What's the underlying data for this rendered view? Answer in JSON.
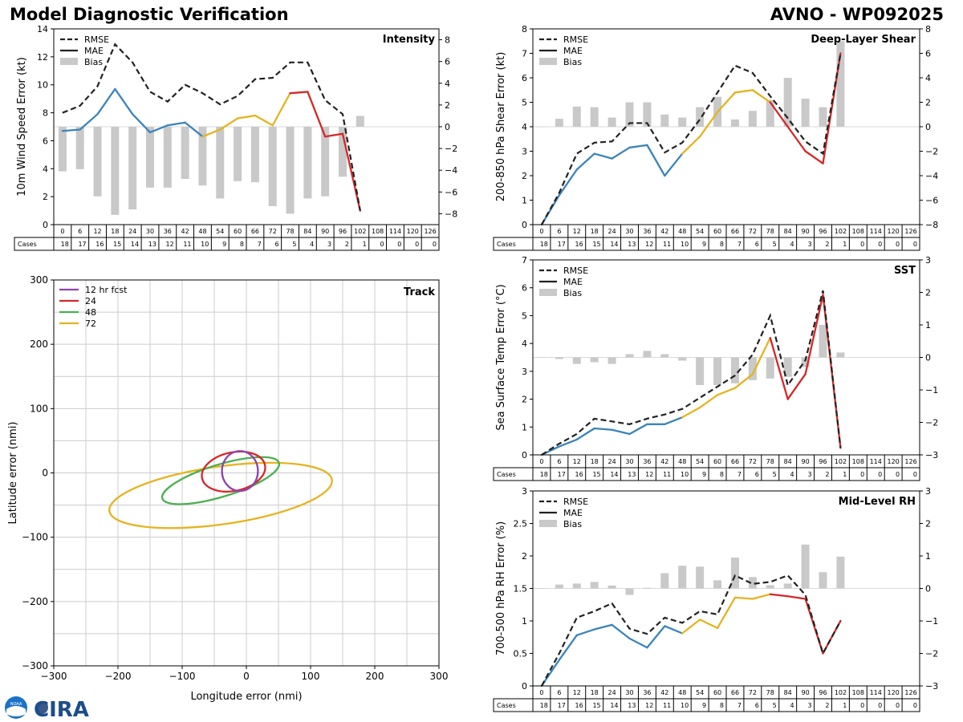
{
  "header": {
    "title": "Model Diagnostic Verification",
    "model_storm": "AVNO - WP092025"
  },
  "footer": {
    "logo_text": "CIRA",
    "noaa_text": "NOAA"
  },
  "colors": {
    "rmse": "#222222",
    "bias": "#c9c9c9",
    "early": "#3a84bc",
    "mid": "#e6b320",
    "late": "#d62728",
    "track_12": "#8e44ad",
    "track_24": "#d62728",
    "track_48": "#4caf50",
    "track_72": "#e6b320"
  },
  "legend": {
    "rmse": "RMSE",
    "mae": "MAE",
    "bias": "Bias"
  },
  "cases_label": "Cases",
  "lead_times": [
    0,
    6,
    12,
    18,
    24,
    30,
    36,
    42,
    48,
    54,
    60,
    66,
    72,
    78,
    84,
    90,
    96,
    102,
    108,
    114,
    120,
    126
  ],
  "cases": [
    18,
    17,
    16,
    15,
    14,
    13,
    12,
    11,
    10,
    9,
    8,
    7,
    6,
    5,
    4,
    3,
    2,
    1,
    0,
    0,
    0,
    0
  ],
  "chart_data": [
    {
      "id": "intensity",
      "type": "line",
      "title": "Intensity",
      "ylabel": "10m Wind Speed Error (kt)",
      "ylim": [
        0,
        14
      ],
      "yticks": [
        0,
        2,
        4,
        6,
        8,
        10,
        12,
        14
      ],
      "y2lim": [
        -9,
        9
      ],
      "y2ticks": [
        -8,
        -6,
        -4,
        -2,
        0,
        2,
        4,
        6,
        8
      ],
      "x": [
        0,
        6,
        12,
        18,
        24,
        30,
        36,
        42,
        48,
        54,
        60,
        66,
        72,
        78,
        84,
        90,
        96,
        102
      ],
      "series": [
        {
          "name": "RMSE",
          "values": [
            8.0,
            8.5,
            9.9,
            12.9,
            11.6,
            9.5,
            8.8,
            10.0,
            9.4,
            8.6,
            9.2,
            10.4,
            10.5,
            11.6,
            11.6,
            8.9,
            7.9,
            1.0
          ]
        },
        {
          "name": "MAE",
          "values": [
            6.7,
            6.8,
            7.9,
            9.7,
            7.9,
            6.6,
            7.1,
            7.3,
            6.3,
            6.8,
            7.6,
            7.8,
            7.1,
            9.4,
            9.5,
            6.3,
            6.5,
            1.0
          ]
        },
        {
          "name": "Bias",
          "values": [
            -4.1,
            -3.9,
            -6.4,
            -8.1,
            -7.6,
            -5.6,
            -5.6,
            -4.8,
            -5.4,
            -6.6,
            -5.0,
            -5.1,
            -7.3,
            -8.0,
            -6.6,
            -6.4,
            -4.6,
            1.0
          ]
        }
      ]
    },
    {
      "id": "shear",
      "type": "line",
      "title": "Deep-Layer Shear",
      "ylabel": "200-850 hPa Shear Error (kt)",
      "ylim": [
        0,
        8
      ],
      "yticks": [
        0,
        1,
        2,
        3,
        4,
        5,
        6,
        7,
        8
      ],
      "y2lim": [
        -8,
        8
      ],
      "y2ticks": [
        -8,
        -6,
        -4,
        -2,
        0,
        2,
        4,
        6,
        8
      ],
      "x": [
        0,
        6,
        12,
        18,
        24,
        30,
        36,
        42,
        48,
        54,
        60,
        66,
        72,
        78,
        84,
        90,
        96,
        102
      ],
      "series": [
        {
          "name": "RMSE",
          "values": [
            0.0,
            1.3,
            2.9,
            3.35,
            3.4,
            4.15,
            4.15,
            2.95,
            3.35,
            4.3,
            5.4,
            6.5,
            6.2,
            5.25,
            4.35,
            3.4,
            2.9,
            7.0
          ]
        },
        {
          "name": "MAE",
          "values": [
            0.0,
            1.2,
            2.25,
            2.9,
            2.7,
            3.15,
            3.25,
            2.0,
            2.9,
            3.6,
            4.6,
            5.4,
            5.5,
            5.0,
            4.0,
            3.0,
            2.5,
            7.0
          ]
        },
        {
          "name": "Bias",
          "values": [
            0.0,
            0.65,
            1.65,
            1.6,
            0.75,
            2.0,
            2.0,
            1.0,
            0.75,
            1.6,
            2.45,
            0.6,
            1.3,
            2.2,
            4.0,
            2.3,
            1.6,
            7.0
          ]
        }
      ]
    },
    {
      "id": "sst",
      "type": "line",
      "title": "SST",
      "ylabel": "Sea Surface Temp Error (°C)",
      "ylim": [
        0,
        7
      ],
      "yticks": [
        0,
        1,
        2,
        3,
        4,
        5,
        6,
        7
      ],
      "y2lim": [
        -3,
        3
      ],
      "y2ticks": [
        -3,
        -2,
        -1,
        0,
        1,
        2,
        3
      ],
      "x": [
        0,
        6,
        12,
        18,
        24,
        30,
        36,
        42,
        48,
        54,
        60,
        66,
        72,
        78,
        84,
        90,
        96,
        102
      ],
      "series": [
        {
          "name": "RMSE",
          "values": [
            0.0,
            0.4,
            0.75,
            1.3,
            1.2,
            1.1,
            1.3,
            1.45,
            1.65,
            2.05,
            2.45,
            2.85,
            3.6,
            5.0,
            2.5,
            3.4,
            5.9,
            0.25
          ]
        },
        {
          "name": "MAE",
          "values": [
            0.0,
            0.3,
            0.55,
            0.95,
            0.9,
            0.75,
            1.1,
            1.1,
            1.35,
            1.7,
            2.15,
            2.4,
            2.9,
            4.2,
            2.0,
            2.9,
            5.75,
            0.25
          ]
        },
        {
          "name": "Bias",
          "values": [
            0.0,
            -0.05,
            -0.2,
            -0.15,
            -0.2,
            0.1,
            0.2,
            0.1,
            -0.1,
            -0.85,
            -0.85,
            -0.8,
            -0.7,
            -0.65,
            -0.6,
            -0.3,
            1.0,
            0.15
          ]
        }
      ]
    },
    {
      "id": "rh",
      "type": "line",
      "title": "Mid-Level RH",
      "ylabel": "700-500 hPa RH Error (%)",
      "ylim": [
        0,
        3.0
      ],
      "yticks": [
        0.0,
        0.5,
        1.0,
        1.5,
        2.0,
        2.5,
        3.0
      ],
      "y2lim": [
        -3,
        3
      ],
      "y2ticks": [
        -3,
        -2,
        -1,
        0,
        1,
        2,
        3
      ],
      "x": [
        0,
        6,
        12,
        18,
        24,
        30,
        36,
        42,
        48,
        54,
        60,
        66,
        72,
        78,
        84,
        90,
        96,
        102
      ],
      "series": [
        {
          "name": "RMSE",
          "values": [
            0.0,
            0.5,
            1.05,
            1.15,
            1.27,
            0.88,
            0.8,
            1.05,
            0.97,
            1.15,
            1.1,
            1.7,
            1.57,
            1.6,
            1.7,
            1.4,
            0.5,
            1.0
          ]
        },
        {
          "name": "MAE",
          "values": [
            0.0,
            0.4,
            0.78,
            0.87,
            0.94,
            0.73,
            0.59,
            0.92,
            0.81,
            1.02,
            0.89,
            1.36,
            1.34,
            1.41,
            1.38,
            1.34,
            0.5,
            1.0
          ]
        },
        {
          "name": "Bias",
          "values": [
            0.0,
            0.12,
            0.15,
            0.2,
            0.09,
            -0.2,
            0.02,
            0.47,
            0.7,
            0.67,
            0.25,
            0.95,
            0.35,
            0.1,
            0.15,
            1.35,
            0.5,
            0.98
          ]
        }
      ]
    },
    {
      "id": "track",
      "type": "scatter",
      "title": "Track",
      "xlabel": "Longitude error (nmi)",
      "ylabel": "Latitude error (nmi)",
      "xlim": [
        -300,
        300
      ],
      "ylim": [
        -300,
        300
      ],
      "xticks": [
        -300,
        -200,
        -100,
        0,
        100,
        200,
        300
      ],
      "yticks": [
        -300,
        -200,
        -100,
        0,
        100,
        200,
        300
      ],
      "legend_entries": [
        "12 hr fcst",
        "24",
        "48",
        "72"
      ],
      "ellipses": [
        {
          "name": "12 hr fcst",
          "cx": -10,
          "cy": 3,
          "rx": 28,
          "ry": 31,
          "rot": 0
        },
        {
          "name": "24",
          "cx": -20,
          "cy": 2,
          "rx": 50,
          "ry": 30,
          "rot": 12
        },
        {
          "name": "48",
          "cx": -40,
          "cy": -12,
          "rx": 95,
          "ry": 25,
          "rot": 17
        },
        {
          "name": "72",
          "cx": -40,
          "cy": -35,
          "rx": 175,
          "ry": 45,
          "rot": 8
        }
      ]
    }
  ]
}
